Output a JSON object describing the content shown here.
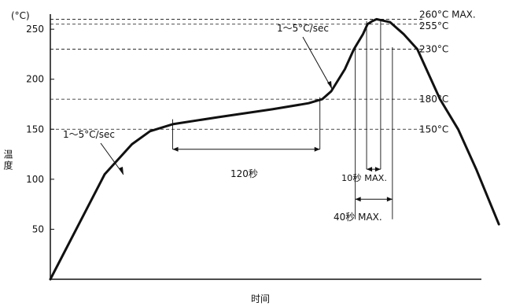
{
  "chart_data": {
    "type": "line",
    "title": "",
    "y_unit": "(°C)",
    "ylabel": "温度",
    "xlabel": "时间",
    "ylim": [
      0,
      280
    ],
    "xlim": [
      0,
      100
    ],
    "y_ticks": [
      50,
      100,
      150,
      200,
      250
    ],
    "grid": false,
    "series": [
      {
        "x": [
          0,
          12,
          18,
          22,
          27,
          37,
          49,
          57,
          60,
          62,
          65,
          67,
          69,
          70,
          71,
          72,
          73,
          75,
          78,
          81,
          83,
          86,
          90,
          94,
          99
        ],
        "y": [
          0,
          105,
          135,
          148,
          155,
          162,
          170,
          176,
          180,
          188,
          210,
          230,
          245,
          255,
          258,
          260,
          259,
          257,
          245,
          230,
          210,
          180,
          150,
          110,
          55
        ]
      }
    ],
    "reference_lines": [
      {
        "y": 260,
        "label": "260°C MAX."
      },
      {
        "y": 255,
        "label": "255°C"
      },
      {
        "y": 230,
        "label": "230°C"
      },
      {
        "y": 180,
        "label": "180°C"
      },
      {
        "y": 150,
        "label": "150°C"
      }
    ],
    "annotations": {
      "ramp_rate_1": "1～5°C/sec",
      "ramp_rate_2": "1～5°C/sec",
      "preheat_time": "120秒",
      "peak_time": "10秒 MAX.",
      "above_230_time": "40秒 MAX."
    }
  }
}
